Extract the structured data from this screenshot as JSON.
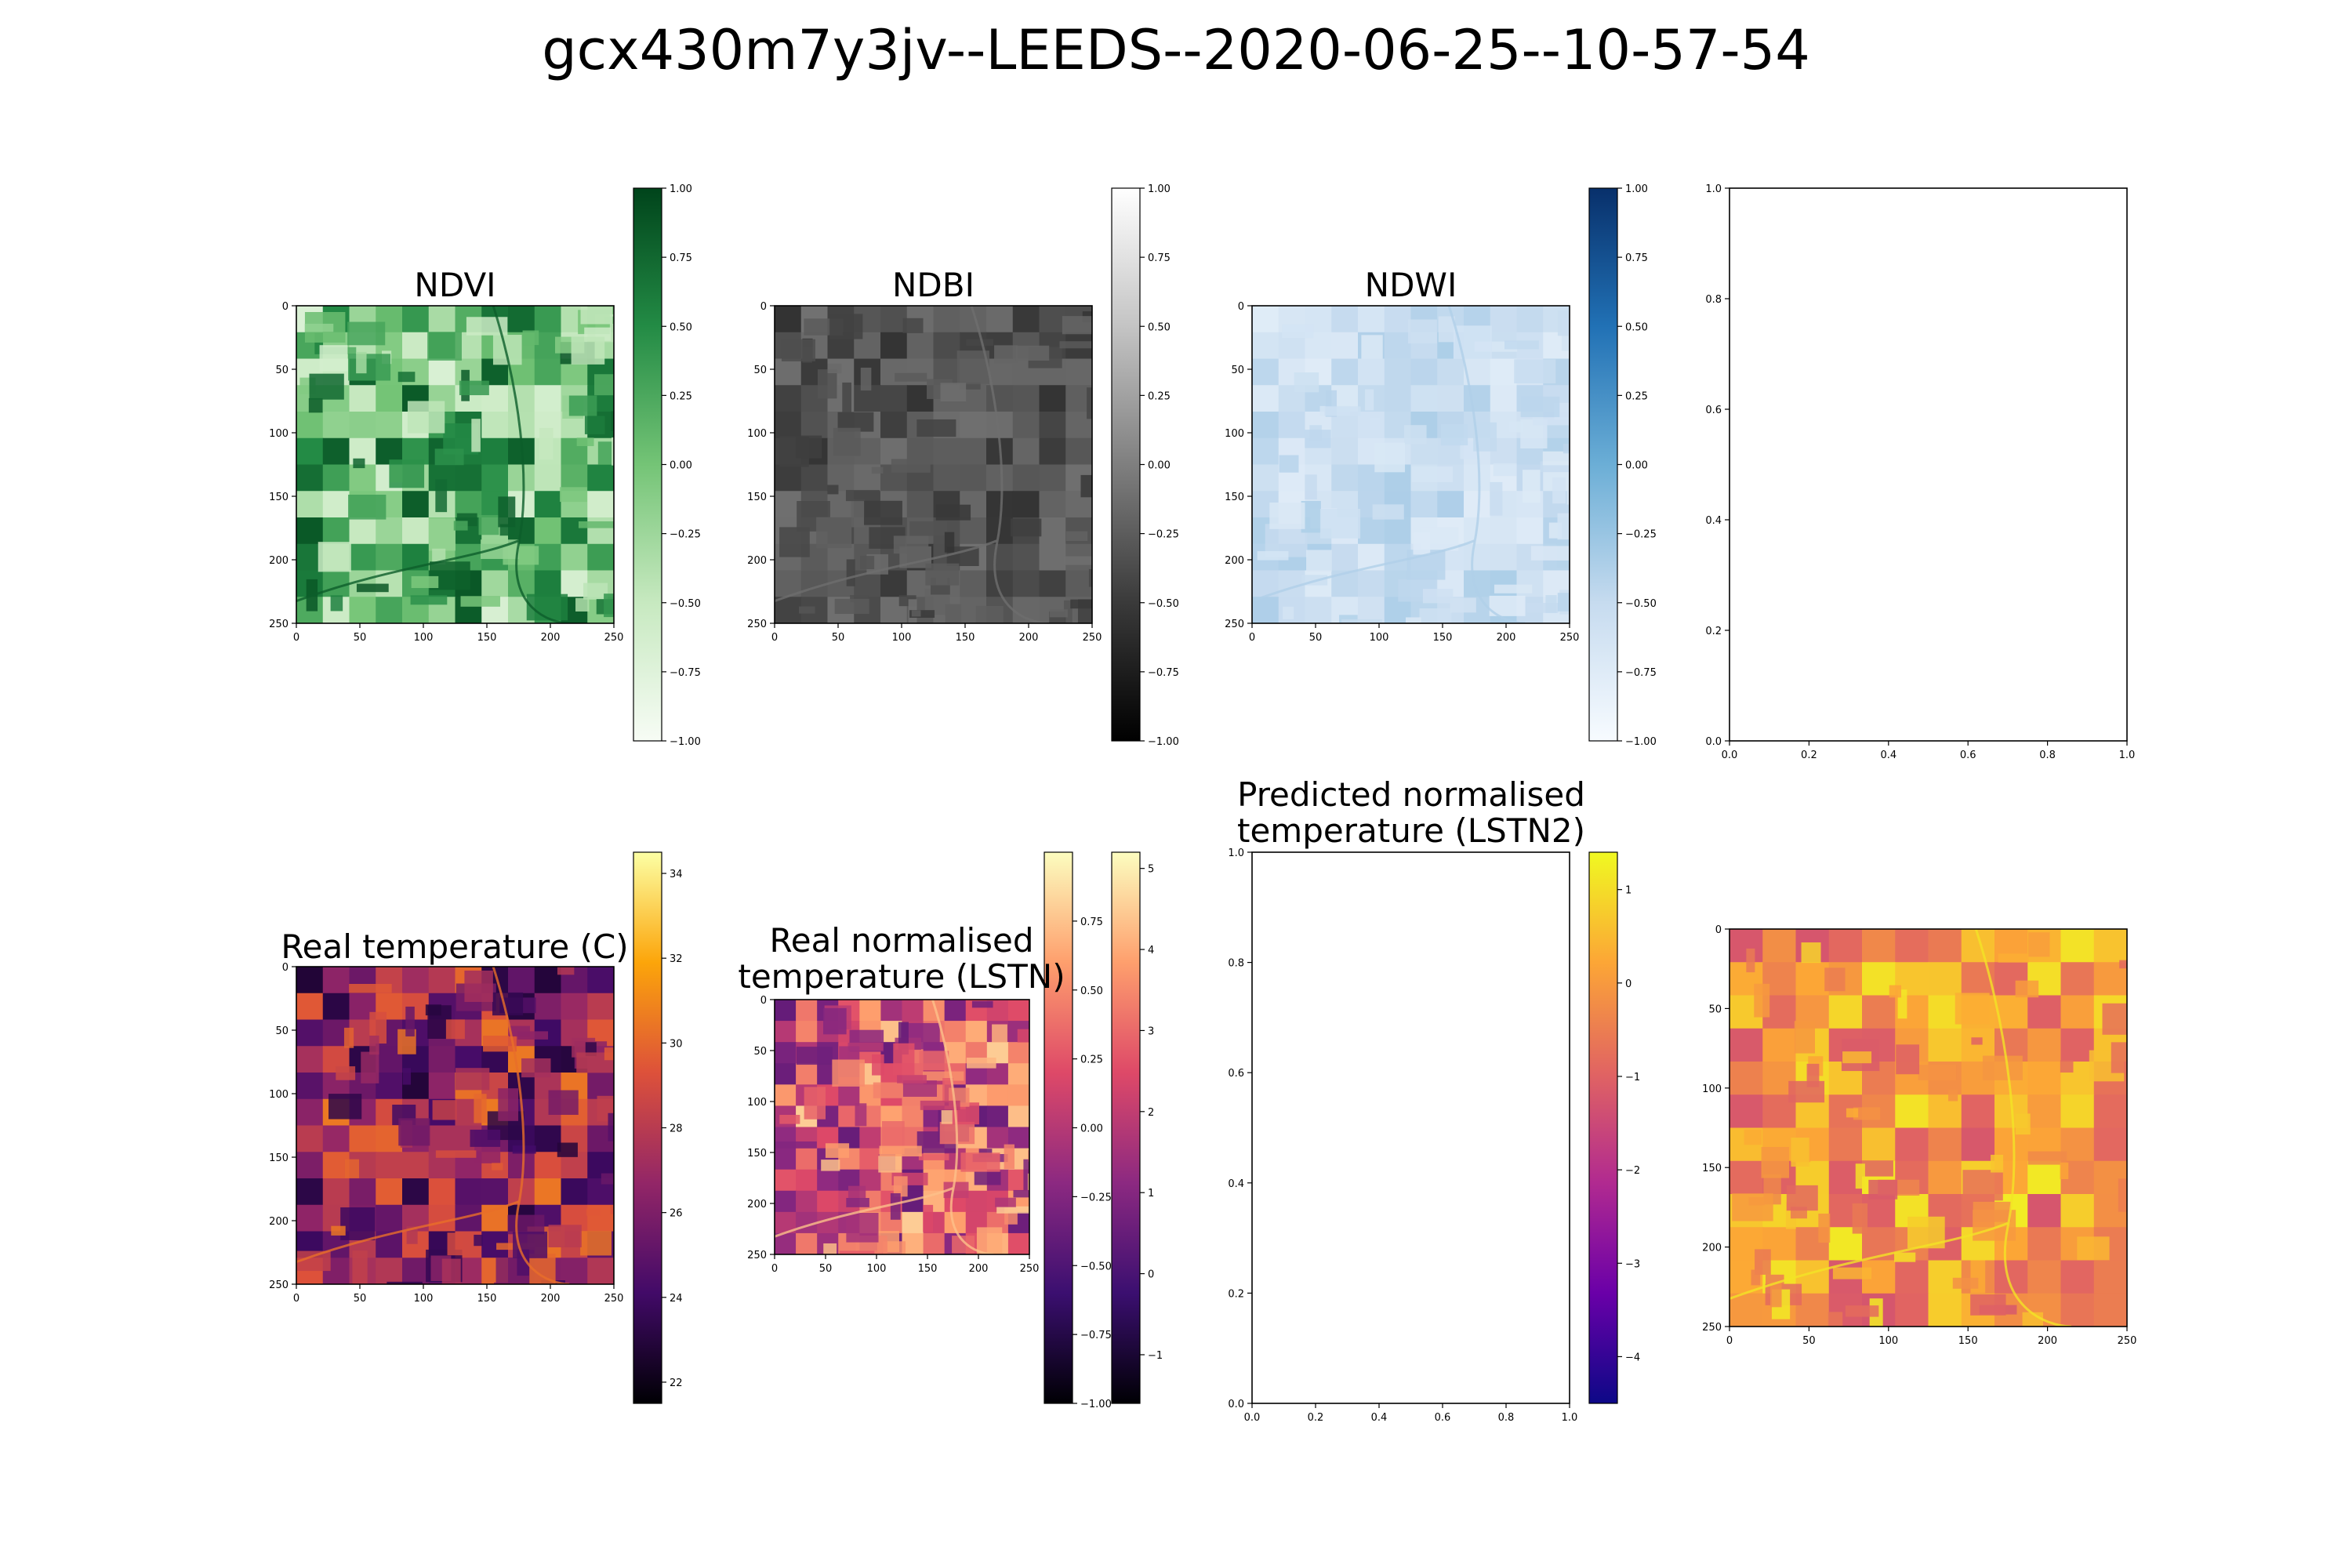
{
  "figure": {
    "title": "gcx430m7y3jv--LEEDS--2020-06-25--10-57-54"
  },
  "chart_data": [
    {
      "id": "ndvi",
      "type": "heatmap",
      "title": "NDVI",
      "colormap": "Greens",
      "colormap_colors": [
        "#f7fcf5",
        "#c7e9c0",
        "#74c476",
        "#238b45",
        "#00441b"
      ],
      "image_range": [
        0.15,
        0.95
      ],
      "xlim": [
        0,
        255
      ],
      "ylim": [
        255,
        0
      ],
      "x_ticks": [
        "0",
        "50",
        "100",
        "150",
        "200",
        "250"
      ],
      "y_ticks": [
        "0",
        "50",
        "100",
        "150",
        "200",
        "250"
      ],
      "colorbar": {
        "range": [
          -1.0,
          1.0
        ],
        "ticks": [
          "1.00",
          "0.75",
          "0.50",
          "0.25",
          "0.00",
          "−0.25",
          "−0.50",
          "−0.75",
          "−1.00"
        ]
      }
    },
    {
      "id": "ndbi",
      "type": "heatmap",
      "title": "NDBI",
      "colormap": "Greys_r",
      "colormap_colors": [
        "#000000",
        "#3a3a3a",
        "#7f7f7f",
        "#c4c4c4",
        "#ffffff"
      ],
      "image_range": [
        0.22,
        0.45
      ],
      "xlim": [
        0,
        255
      ],
      "ylim": [
        255,
        0
      ],
      "x_ticks": [
        "0",
        "50",
        "100",
        "150",
        "200",
        "250"
      ],
      "y_ticks": [
        "0",
        "50",
        "100",
        "150",
        "200",
        "250"
      ],
      "colorbar": {
        "range": [
          -1.0,
          1.0
        ],
        "ticks": [
          "1.00",
          "0.75",
          "0.50",
          "0.25",
          "0.00",
          "−0.25",
          "−0.50",
          "−0.75",
          "−1.00"
        ]
      }
    },
    {
      "id": "ndwi",
      "type": "heatmap",
      "title": "NDWI",
      "colormap": "Blues",
      "colormap_colors": [
        "#f7fbff",
        "#c6dbef",
        "#6baed6",
        "#2171b5",
        "#08306b"
      ],
      "image_range": [
        0.12,
        0.32
      ],
      "xlim": [
        0,
        255
      ],
      "ylim": [
        255,
        0
      ],
      "x_ticks": [
        "0",
        "50",
        "100",
        "150",
        "200",
        "250"
      ],
      "y_ticks": [
        "0",
        "50",
        "100",
        "150",
        "200",
        "250"
      ],
      "colorbar": {
        "range": [
          -1.0,
          1.0
        ],
        "ticks": [
          "1.00",
          "0.75",
          "0.50",
          "0.25",
          "0.00",
          "−0.25",
          "−0.50",
          "−0.75",
          "−1.00"
        ]
      }
    },
    {
      "id": "empty-top",
      "type": "scatter",
      "title": "",
      "xlim": [
        0,
        1
      ],
      "ylim": [
        0,
        1
      ],
      "x_ticks": [
        "0.0",
        "0.2",
        "0.4",
        "0.6",
        "0.8",
        "1.0"
      ],
      "y_ticks": [
        "0.0",
        "0.2",
        "0.4",
        "0.6",
        "0.8",
        "1.0"
      ]
    },
    {
      "id": "real-temp",
      "type": "heatmap",
      "title": "Real temperature (C)",
      "colormap": "inferno",
      "colormap_colors": [
        "#000004",
        "#420a68",
        "#932667",
        "#dd513a",
        "#fca50a",
        "#fcffa4"
      ],
      "image_range": [
        0.1,
        0.7
      ],
      "xlim": [
        0,
        255
      ],
      "ylim": [
        255,
        0
      ],
      "x_ticks": [
        "0",
        "50",
        "100",
        "150",
        "200",
        "250"
      ],
      "y_ticks": [
        "0",
        "50",
        "100",
        "150",
        "200",
        "250"
      ],
      "colorbar": {
        "range": [
          21.5,
          34.5
        ],
        "ticks": [
          "34",
          "32",
          "30",
          "28",
          "26",
          "24",
          "22"
        ]
      }
    },
    {
      "id": "real-norm-temp",
      "type": "heatmap",
      "title": "Real normalised temperature (LSTN)",
      "title_lines": [
        "Real normalised",
        "temperature (LSTN)"
      ],
      "colormap": "magma",
      "colormap_colors": [
        "#000004",
        "#3b0f70",
        "#8c2981",
        "#de4968",
        "#fe9f6d",
        "#fcfdbf"
      ],
      "image_range": [
        0.3,
        0.9
      ],
      "xlim": [
        0,
        255
      ],
      "ylim": [
        255,
        0
      ],
      "x_ticks": [
        "0",
        "50",
        "100",
        "150",
        "200",
        "250"
      ],
      "y_ticks": [
        "0",
        "50",
        "100",
        "150",
        "200",
        "250"
      ],
      "colorbar": {
        "range": [
          -1.0,
          1.0
        ],
        "ticks": [
          "0.75",
          "0.50",
          "0.25",
          "0.00",
          "−0.25",
          "−0.50",
          "−0.75",
          "−1.00"
        ]
      },
      "colorbar2": {
        "range": [
          -1.6,
          5.2
        ],
        "ticks": [
          "5",
          "4",
          "3",
          "2",
          "1",
          "0",
          "−1"
        ]
      }
    },
    {
      "id": "pred-norm-temp",
      "type": "scatter",
      "title": "Predicted normalised temperature (LSTN2)",
      "title_lines": [
        "Predicted normalised",
        "temperature (LSTN2)"
      ],
      "xlim": [
        0,
        1
      ],
      "ylim": [
        0,
        1
      ],
      "x_ticks": [
        "0.0",
        "0.2",
        "0.4",
        "0.6",
        "0.8",
        "1.0"
      ],
      "y_ticks": [
        "0.0",
        "0.2",
        "0.4",
        "0.6",
        "0.8",
        "1.0"
      ],
      "colorbar": {
        "colormap": "plasma",
        "range": [
          -4.5,
          1.4
        ],
        "ticks": [
          "1",
          "0",
          "−1",
          "−2",
          "−3",
          "−4"
        ],
        "colormap_colors": [
          "#0d0887",
          "#6a00a8",
          "#b12a90",
          "#e16462",
          "#fca636",
          "#f0f921"
        ]
      }
    },
    {
      "id": "pred-image",
      "type": "heatmap",
      "title": "",
      "colormap": "plasma",
      "colormap_colors": [
        "#0d0887",
        "#6a00a8",
        "#b12a90",
        "#e16462",
        "#fca636",
        "#f0f921"
      ],
      "image_range": [
        0.55,
        0.97
      ],
      "xlim": [
        0,
        255
      ],
      "ylim": [
        255,
        0
      ],
      "x_ticks": [
        "0",
        "50",
        "100",
        "150",
        "200",
        "250"
      ],
      "y_ticks": [
        "0",
        "50",
        "100",
        "150",
        "200",
        "250"
      ]
    }
  ]
}
